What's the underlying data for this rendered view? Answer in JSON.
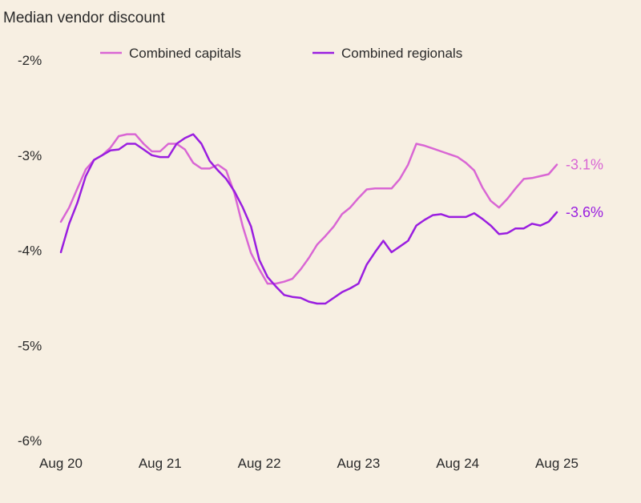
{
  "chart_data": {
    "type": "line",
    "title": "Median vendor discount",
    "xlabel": "",
    "ylabel": "",
    "ylim": [
      -6,
      -2
    ],
    "yticks": [
      {
        "value": -2,
        "label": "-2%"
      },
      {
        "value": -3,
        "label": "-3%"
      },
      {
        "value": -4,
        "label": "-4%"
      },
      {
        "value": -5,
        "label": "-5%"
      },
      {
        "value": -6,
        "label": "-6%"
      }
    ],
    "xlim": [
      0,
      60
    ],
    "xticks": [
      {
        "value": 0,
        "label": "Aug 20"
      },
      {
        "value": 12,
        "label": "Aug 21"
      },
      {
        "value": 24,
        "label": "Aug 22"
      },
      {
        "value": 36,
        "label": "Aug 23"
      },
      {
        "value": 48,
        "label": "Aug 24"
      },
      {
        "value": 60,
        "label": "Aug 25"
      }
    ],
    "legend_position": "top",
    "series": [
      {
        "name": "Combined capitals",
        "color": "#d966d4",
        "end_label": "-3.1%",
        "values": [
          -3.7,
          -3.55,
          -3.35,
          -3.15,
          -3.05,
          -3.0,
          -2.92,
          -2.8,
          -2.78,
          -2.78,
          -2.88,
          -2.96,
          -2.96,
          -2.88,
          -2.88,
          -2.94,
          -3.08,
          -3.14,
          -3.14,
          -3.1,
          -3.16,
          -3.4,
          -3.75,
          -4.03,
          -4.2,
          -4.35,
          -4.35,
          -4.33,
          -4.3,
          -4.2,
          -4.08,
          -3.94,
          -3.85,
          -3.75,
          -3.62,
          -3.55,
          -3.45,
          -3.36,
          -3.35,
          -3.35,
          -3.35,
          -3.25,
          -3.1,
          -2.88,
          -2.9,
          -2.93,
          -2.96,
          -2.99,
          -3.02,
          -3.08,
          -3.16,
          -3.34,
          -3.48,
          -3.55,
          -3.46,
          -3.35,
          -3.25,
          -3.24,
          -3.22,
          -3.2,
          -3.1
        ]
      },
      {
        "name": "Combined regionals",
        "color": "#9a1ee0",
        "end_label": "-3.6%",
        "values": [
          -4.02,
          -3.72,
          -3.5,
          -3.22,
          -3.05,
          -3.0,
          -2.95,
          -2.94,
          -2.88,
          -2.88,
          -2.94,
          -3.0,
          -3.02,
          -3.02,
          -2.88,
          -2.82,
          -2.78,
          -2.88,
          -3.06,
          -3.16,
          -3.25,
          -3.38,
          -3.55,
          -3.75,
          -4.1,
          -4.28,
          -4.38,
          -4.47,
          -4.49,
          -4.5,
          -4.54,
          -4.56,
          -4.56,
          -4.5,
          -4.44,
          -4.4,
          -4.35,
          -4.15,
          -4.02,
          -3.9,
          -4.02,
          -3.96,
          -3.9,
          -3.74,
          -3.68,
          -3.63,
          -3.62,
          -3.65,
          -3.65,
          -3.65,
          -3.61,
          -3.67,
          -3.74,
          -3.83,
          -3.82,
          -3.77,
          -3.77,
          -3.72,
          -3.74,
          -3.7,
          -3.6
        ]
      }
    ]
  }
}
